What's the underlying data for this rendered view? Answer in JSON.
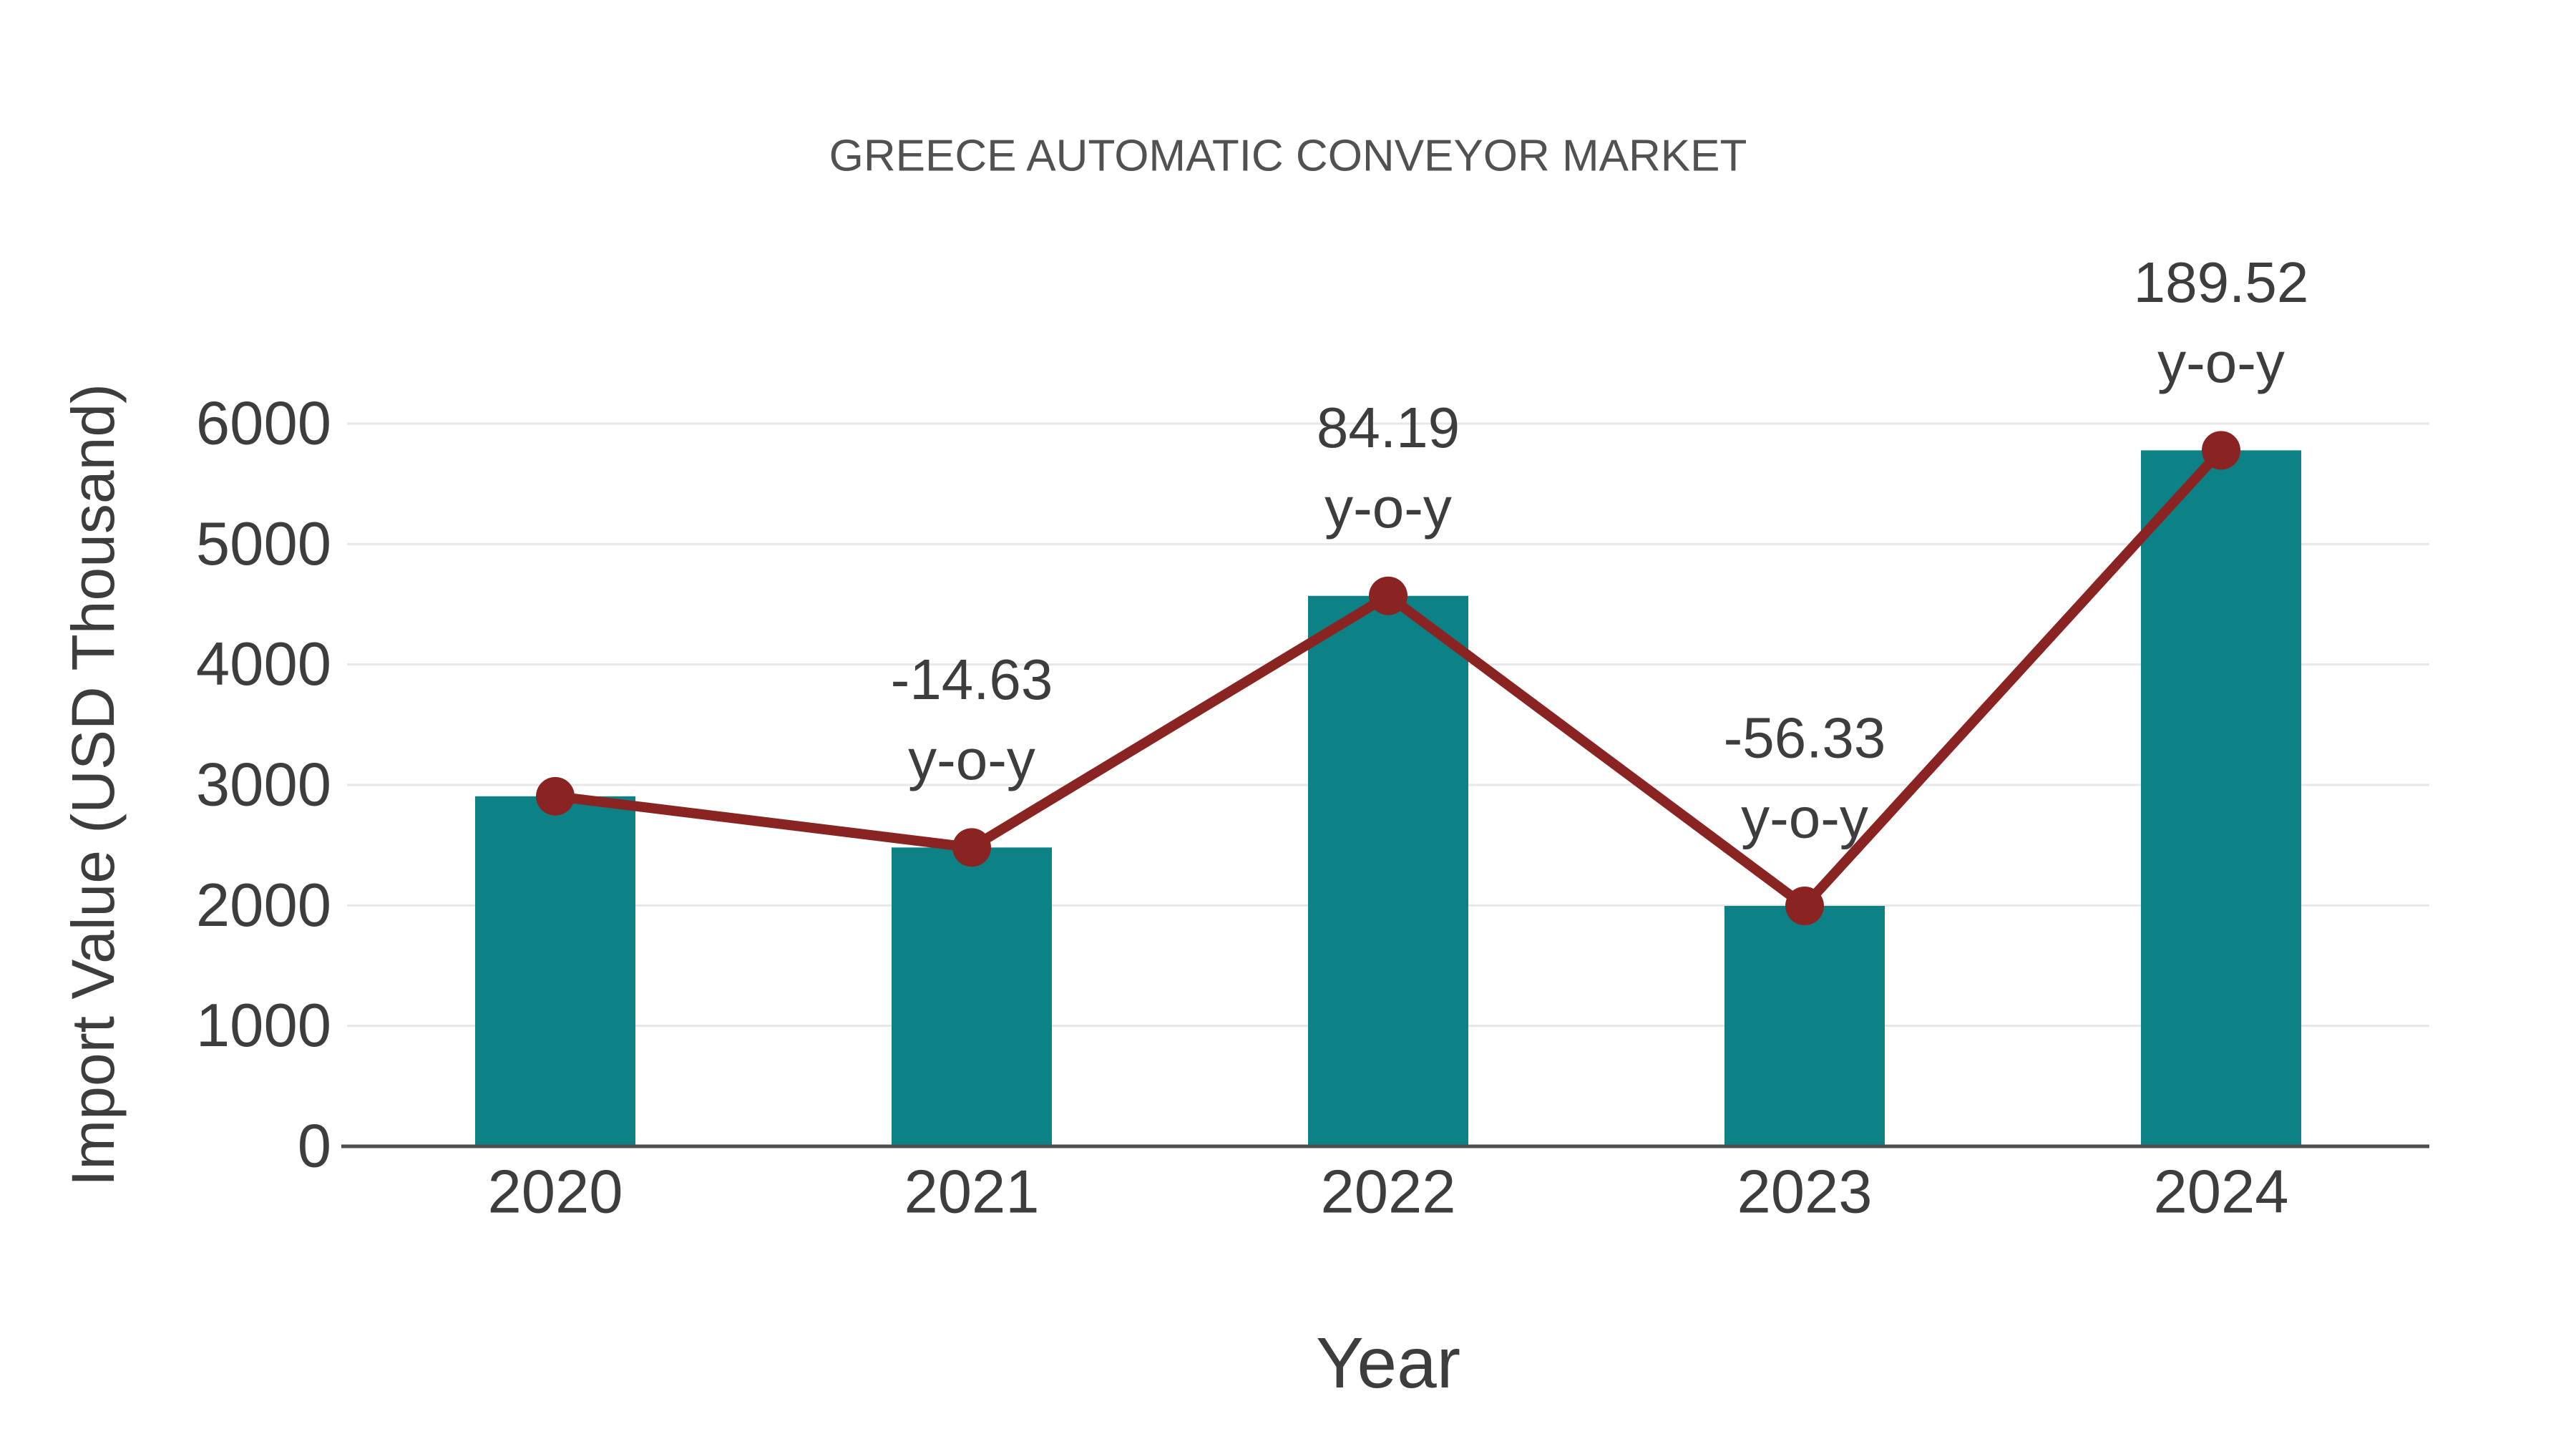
{
  "chart_data": {
    "type": "bar",
    "title": "GREECE AUTOMATIC CONVEYOR MARKET",
    "xlabel": "Year",
    "ylabel": "Import Value (USD Thousand)",
    "categories": [
      "2020",
      "2021",
      "2022",
      "2023",
      "2024"
    ],
    "series": [
      {
        "name": "Import Value (USD Thousand)",
        "type": "bar",
        "values": [
          2906,
          2481,
          4570,
          1996,
          5778
        ]
      },
      {
        "name": "y-o-y trend line",
        "type": "line",
        "values": [
          2906,
          2481,
          4570,
          1996,
          5778
        ]
      }
    ],
    "annotations": [
      {
        "category": "2021",
        "value": "-14.63",
        "label": "y-o-y"
      },
      {
        "category": "2022",
        "value": "84.19",
        "label": "y-o-y"
      },
      {
        "category": "2023",
        "value": "-56.33",
        "label": "y-o-y"
      },
      {
        "category": "2024",
        "value": "189.52",
        "label": "y-o-y"
      }
    ],
    "yticks": [
      0,
      1000,
      2000,
      3000,
      4000,
      5000,
      6000
    ],
    "ylim": [
      0,
      6000
    ],
    "grid": true,
    "legend_position": "none",
    "colors": {
      "bar": "#0c8286",
      "line": "#8a2423",
      "marker": "#8a2423",
      "gridline": "#e7e7e7",
      "axis_line": "#4d4d4d",
      "tick_text": "#3d3d3d",
      "title_text": "#515151"
    }
  }
}
